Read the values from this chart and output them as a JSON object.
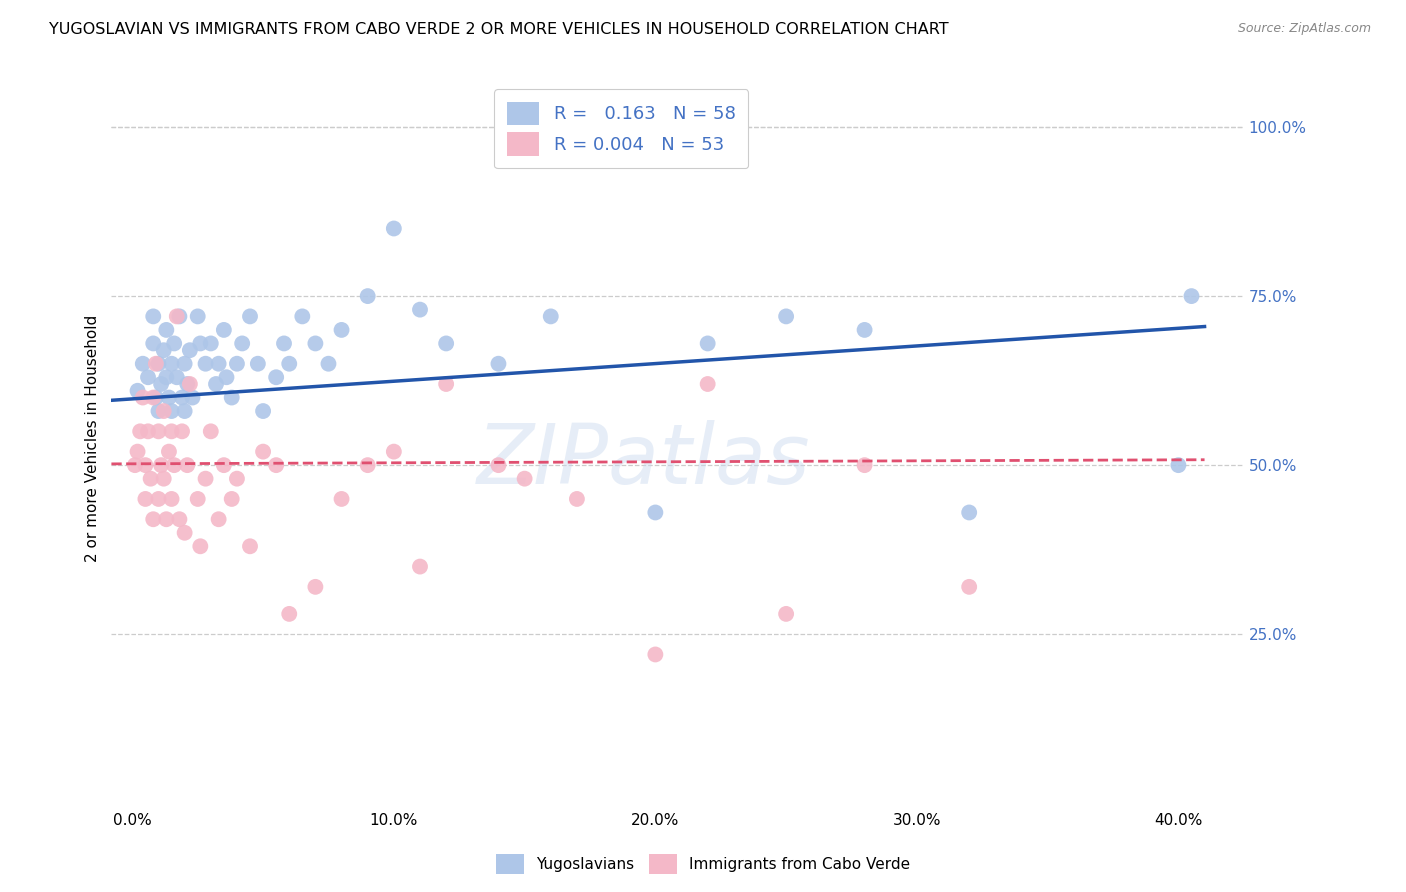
{
  "title": "YUGOSLAVIAN VS IMMIGRANTS FROM CABO VERDE 2 OR MORE VEHICLES IN HOUSEHOLD CORRELATION CHART",
  "source": "Source: ZipAtlas.com",
  "xlabel_ticks": [
    "0.0%",
    "10.0%",
    "20.0%",
    "30.0%",
    "40.0%"
  ],
  "xlabel_tick_vals": [
    0.0,
    0.1,
    0.2,
    0.3,
    0.4
  ],
  "ylabel": "2 or more Vehicles in Household",
  "ylabel_right_ticks": [
    "100.0%",
    "75.0%",
    "50.0%",
    "25.0%"
  ],
  "ylabel_right_tick_vals": [
    1.0,
    0.75,
    0.5,
    0.25
  ],
  "ylim": [
    0.0,
    1.08
  ],
  "xlim": [
    -0.008,
    0.425
  ],
  "legend_blue_R": "0.163",
  "legend_blue_N": "58",
  "legend_pink_R": "0.004",
  "legend_pink_N": "53",
  "blue_scatter_x": [
    0.002,
    0.004,
    0.006,
    0.008,
    0.008,
    0.009,
    0.01,
    0.01,
    0.011,
    0.012,
    0.013,
    0.013,
    0.014,
    0.015,
    0.015,
    0.016,
    0.017,
    0.018,
    0.019,
    0.02,
    0.02,
    0.021,
    0.022,
    0.023,
    0.025,
    0.026,
    0.028,
    0.03,
    0.032,
    0.033,
    0.035,
    0.036,
    0.038,
    0.04,
    0.042,
    0.045,
    0.048,
    0.05,
    0.055,
    0.058,
    0.06,
    0.065,
    0.07,
    0.075,
    0.08,
    0.09,
    0.1,
    0.11,
    0.12,
    0.14,
    0.16,
    0.2,
    0.22,
    0.25,
    0.28,
    0.32,
    0.4,
    0.405
  ],
  "blue_scatter_y": [
    0.61,
    0.65,
    0.63,
    0.68,
    0.72,
    0.6,
    0.65,
    0.58,
    0.62,
    0.67,
    0.63,
    0.7,
    0.6,
    0.65,
    0.58,
    0.68,
    0.63,
    0.72,
    0.6,
    0.65,
    0.58,
    0.62,
    0.67,
    0.6,
    0.72,
    0.68,
    0.65,
    0.68,
    0.62,
    0.65,
    0.7,
    0.63,
    0.6,
    0.65,
    0.68,
    0.72,
    0.65,
    0.58,
    0.63,
    0.68,
    0.65,
    0.72,
    0.68,
    0.65,
    0.7,
    0.75,
    0.85,
    0.73,
    0.68,
    0.65,
    0.72,
    0.43,
    0.68,
    0.72,
    0.7,
    0.43,
    0.5,
    0.75
  ],
  "pink_scatter_x": [
    0.001,
    0.002,
    0.003,
    0.004,
    0.005,
    0.005,
    0.006,
    0.007,
    0.008,
    0.008,
    0.009,
    0.01,
    0.01,
    0.011,
    0.012,
    0.012,
    0.013,
    0.014,
    0.015,
    0.015,
    0.016,
    0.017,
    0.018,
    0.019,
    0.02,
    0.021,
    0.022,
    0.025,
    0.026,
    0.028,
    0.03,
    0.033,
    0.035,
    0.038,
    0.04,
    0.045,
    0.05,
    0.055,
    0.06,
    0.07,
    0.08,
    0.09,
    0.1,
    0.11,
    0.12,
    0.14,
    0.15,
    0.17,
    0.2,
    0.22,
    0.25,
    0.28,
    0.32
  ],
  "pink_scatter_y": [
    0.5,
    0.52,
    0.55,
    0.6,
    0.5,
    0.45,
    0.55,
    0.48,
    0.6,
    0.42,
    0.65,
    0.55,
    0.45,
    0.5,
    0.58,
    0.48,
    0.42,
    0.52,
    0.55,
    0.45,
    0.5,
    0.72,
    0.42,
    0.55,
    0.4,
    0.5,
    0.62,
    0.45,
    0.38,
    0.48,
    0.55,
    0.42,
    0.5,
    0.45,
    0.48,
    0.38,
    0.52,
    0.5,
    0.28,
    0.32,
    0.45,
    0.5,
    0.52,
    0.35,
    0.62,
    0.5,
    0.48,
    0.45,
    0.22,
    0.62,
    0.28,
    0.5,
    0.32
  ],
  "blue_color": "#aec6e8",
  "blue_line_color": "#2255aa",
  "pink_color": "#f4b8c8",
  "pink_line_color": "#e05070",
  "background_color": "#ffffff",
  "grid_color": "#cccccc",
  "title_fontsize": 11.5,
  "axis_label_color": "#4472c4",
  "watermark": "ZIPatlas"
}
